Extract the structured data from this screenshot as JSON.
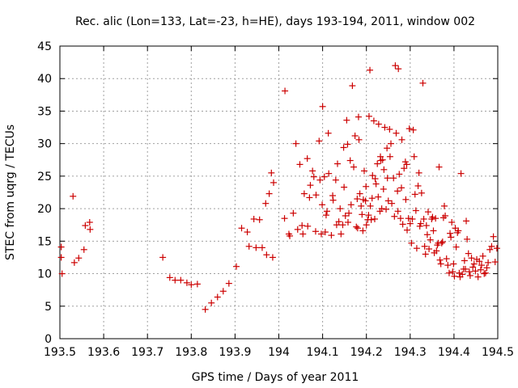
{
  "chart_data": {
    "type": "scatter",
    "title": "Rec. alic (Lon=133, Lat=-23, h=HE), days 193-194, 2011, window 002",
    "xlabel": "GPS time / Days of year 2011",
    "ylabel": "STEC from uqrg / TECUs",
    "xlim": [
      193.5,
      194.5
    ],
    "ylim": [
      0,
      45
    ],
    "x_ticks": [
      193.5,
      193.6,
      193.7,
      193.8,
      193.9,
      194.0,
      194.1,
      194.2,
      194.3,
      194.4,
      194.5
    ],
    "x_tick_labels": [
      "193.5",
      "193.6",
      "193.7",
      "193.8",
      "193.9",
      "194",
      "194.1",
      "194.2",
      "194.3",
      "194.4",
      "194.5"
    ],
    "y_ticks": [
      0,
      5,
      10,
      15,
      20,
      25,
      30,
      35,
      40,
      45
    ],
    "y_tick_labels": [
      "0",
      "5",
      "10",
      "15",
      "20",
      "25",
      "30",
      "35",
      "40",
      "45"
    ],
    "grid": true,
    "marker": "plus",
    "color": "#cc0000",
    "x": [
      193.503,
      193.503,
      193.505,
      193.53,
      193.533,
      193.543,
      193.555,
      193.558,
      193.568,
      193.569,
      193.735,
      193.751,
      193.763,
      193.776,
      193.79,
      193.8,
      193.814,
      193.832,
      193.846,
      193.86,
      193.873,
      193.886,
      193.903,
      193.915,
      193.928,
      193.932,
      193.943,
      193.948,
      193.956,
      193.962,
      193.97,
      193.972,
      193.978,
      193.983,
      193.986,
      193.988,
      194.013,
      194.014,
      194.023,
      194.025,
      194.033,
      194.039,
      194.043,
      194.048,
      194.053,
      194.055,
      194.058,
      194.065,
      194.066,
      194.07,
      194.072,
      194.077,
      194.08,
      194.084,
      194.085,
      194.092,
      194.094,
      194.097,
      194.099,
      194.1,
      194.104,
      194.106,
      194.108,
      194.11,
      194.113,
      194.114,
      194.12,
      194.123,
      194.124,
      194.13,
      194.132,
      194.134,
      194.137,
      194.14,
      194.142,
      194.146,
      194.148,
      194.149,
      194.152,
      194.155,
      194.157,
      194.158,
      194.16,
      194.163,
      194.165,
      194.168,
      194.171,
      194.174,
      194.177,
      194.179,
      194.18,
      194.182,
      194.183,
      194.185,
      194.188,
      194.19,
      194.192,
      194.193,
      194.195,
      194.198,
      194.199,
      194.2,
      194.203,
      194.205,
      194.206,
      194.208,
      194.209,
      194.211,
      194.213,
      194.214,
      194.217,
      194.219,
      194.22,
      194.222,
      194.225,
      194.227,
      194.228,
      194.231,
      194.232,
      194.233,
      194.235,
      194.237,
      194.239,
      194.24,
      194.242,
      194.245,
      194.247,
      194.248,
      194.25,
      194.253,
      194.254,
      194.256,
      194.258,
      194.262,
      194.264,
      194.266,
      194.268,
      194.271,
      194.272,
      194.273,
      194.275,
      194.278,
      194.28,
      194.281,
      194.283,
      194.286,
      194.289,
      194.29,
      194.292,
      194.293,
      194.296,
      194.298,
      194.3,
      194.303,
      194.305,
      194.307,
      194.309,
      194.311,
      194.313,
      194.315,
      194.318,
      194.32,
      194.322,
      194.324,
      194.326,
      194.329,
      194.331,
      194.333,
      194.335,
      194.337,
      194.339,
      194.341,
      194.343,
      194.346,
      194.349,
      194.351,
      194.353,
      194.355,
      194.358,
      194.36,
      194.362,
      194.364,
      194.366,
      194.368,
      194.37,
      194.372,
      194.374,
      194.376,
      194.378,
      194.38,
      194.383,
      194.386,
      194.389,
      194.391,
      194.393,
      194.395,
      194.397,
      194.399,
      194.401,
      194.403,
      194.405,
      194.408,
      194.41,
      194.412,
      194.414,
      194.416,
      194.419,
      194.422,
      194.424,
      194.426,
      194.428,
      194.43,
      194.433,
      194.435,
      194.437,
      194.44,
      194.443,
      194.446,
      194.449,
      194.452,
      194.455,
      194.458,
      194.461,
      194.463,
      194.466,
      194.469,
      194.472,
      194.475,
      194.478,
      194.482,
      194.486,
      194.49,
      194.494,
      194.498
    ],
    "y": [
      12.5,
      14.1,
      10.0,
      21.9,
      11.7,
      12.4,
      13.7,
      17.4,
      17.9,
      16.8,
      12.5,
      9.4,
      9.0,
      9.0,
      8.6,
      8.3,
      8.4,
      4.5,
      5.5,
      6.4,
      7.3,
      8.5,
      11.1,
      17.0,
      16.4,
      14.2,
      18.4,
      14.0,
      18.3,
      14.0,
      20.8,
      12.9,
      22.3,
      25.5,
      12.5,
      24.0,
      18.5,
      38.1,
      16.1,
      15.8,
      19.3,
      30.0,
      16.8,
      26.8,
      17.4,
      16.1,
      22.3,
      27.7,
      17.3,
      21.7,
      23.6,
      25.8,
      24.9,
      16.5,
      22.1,
      30.4,
      24.4,
      16.1,
      20.6,
      35.7,
      24.9,
      16.4,
      19.0,
      19.6,
      31.6,
      25.4,
      15.9,
      22.0,
      21.3,
      24.4,
      17.5,
      26.9,
      18.0,
      20.0,
      16.1,
      17.5,
      29.4,
      23.3,
      18.9,
      33.6,
      29.9,
      17.9,
      19.3,
      27.4,
      20.6,
      38.9,
      26.4,
      31.2,
      17.2,
      21.5,
      17.0,
      34.1,
      30.6,
      22.3,
      20.4,
      19.1,
      16.6,
      21.4,
      25.8,
      21.2,
      23.4,
      17.5,
      18.3,
      19.0,
      34.2,
      41.3,
      20.4,
      18.3,
      21.6,
      25.1,
      33.5,
      18.4,
      24.6,
      23.8,
      26.9,
      21.8,
      33.0,
      19.6,
      28.0,
      27.4,
      20.0,
      27.5,
      23.0,
      26.0,
      32.5,
      19.9,
      29.3,
      24.7,
      21.2,
      32.2,
      28.0,
      30.0,
      20.8,
      24.7,
      18.8,
      42.0,
      31.6,
      22.7,
      19.6,
      41.5,
      25.3,
      18.5,
      23.2,
      30.6,
      17.6,
      26.2,
      27.2,
      21.4,
      26.8,
      16.7,
      18.5,
      32.3,
      17.7,
      14.7,
      18.4,
      32.1,
      28.0,
      22.2,
      19.7,
      13.9,
      23.5,
      25.5,
      17.3,
      17.7,
      22.4,
      39.3,
      18.4,
      14.2,
      13.0,
      17.4,
      16.0,
      19.5,
      13.8,
      15.2,
      18.4,
      18.7,
      16.6,
      13.2,
      18.5,
      13.5,
      14.4,
      14.7,
      26.4,
      12.1,
      11.5,
      14.7,
      14.9,
      18.6,
      20.4,
      18.9,
      12.3,
      11.3,
      10.1,
      16.2,
      15.6,
      17.9,
      10.3,
      11.5,
      9.6,
      17.0,
      14.1,
      16.3,
      16.6,
      10.1,
      9.5,
      25.4,
      9.9,
      10.7,
      12.0,
      10.7,
      18.1,
      15.3,
      13.1,
      10.3,
      9.7,
      12.4,
      11.0,
      11.5,
      10.4,
      12.2,
      9.5,
      11.9,
      10.6,
      11.3,
      12.7,
      10.0,
      10.1,
      10.9,
      11.7,
      13.7,
      14.2,
      15.7,
      11.8,
      13.9
    ]
  }
}
